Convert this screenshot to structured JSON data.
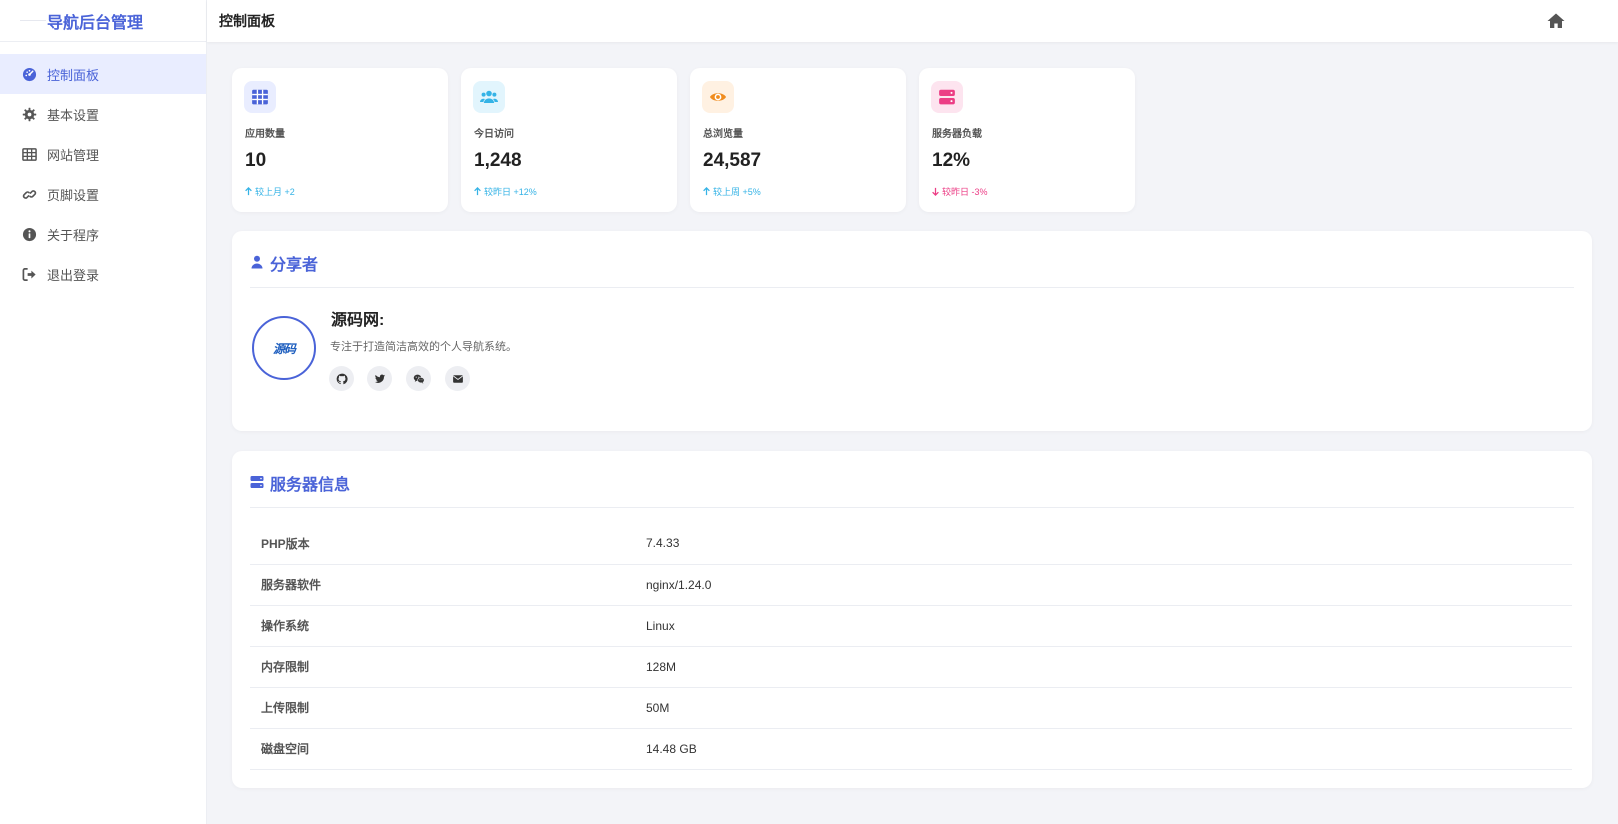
{
  "sidebar": {
    "brand": "导航后台管理",
    "items": [
      {
        "label": "控制面板",
        "icon": "dashboard-icon",
        "active": true
      },
      {
        "label": "基本设置",
        "icon": "gear-icon"
      },
      {
        "label": "网站管理",
        "icon": "table-icon"
      },
      {
        "label": "页脚设置",
        "icon": "link-icon"
      },
      {
        "label": "关于程序",
        "icon": "info-icon"
      },
      {
        "label": "退出登录",
        "icon": "logout-icon"
      }
    ]
  },
  "header": {
    "title": "控制面板",
    "home_icon": "home-icon"
  },
  "stats": [
    {
      "label": "应用数量",
      "value": "10",
      "trend": "较上月 +2",
      "direction": "up",
      "icon": "grid-icon",
      "color": "#4a63d8",
      "bg": "#e9edff"
    },
    {
      "label": "今日访问",
      "value": "1,248",
      "trend": "较昨日 +12%",
      "direction": "up",
      "icon": "users-icon",
      "color": "#35b3e6",
      "bg": "#e2f5fd"
    },
    {
      "label": "总浏览量",
      "value": "24,587",
      "trend": "较上周 +5%",
      "direction": "up",
      "icon": "eye-icon",
      "color": "#f08c1e",
      "bg": "#fff1e2"
    },
    {
      "label": "服务器负载",
      "value": "12%",
      "trend": "较昨日 -3%",
      "direction": "down",
      "icon": "server-icon",
      "color": "#ec3d85",
      "bg": "#fde4ef"
    }
  ],
  "colors": {
    "up": "#35b3e6",
    "down": "#ec3d85",
    "accent": "#4a63d8"
  },
  "sharer": {
    "title": "分享者",
    "avatar_text": "源码",
    "name": "源码网:",
    "description": "专注于打造简洁高效的个人导航系统。",
    "socials": [
      "github-icon",
      "twitter-icon",
      "wechat-icon",
      "envelope-icon"
    ]
  },
  "server": {
    "title": "服务器信息",
    "rows": [
      {
        "key": "PHP版本",
        "value": "7.4.33"
      },
      {
        "key": "服务器软件",
        "value": "nginx/1.24.0"
      },
      {
        "key": "操作系统",
        "value": "Linux"
      },
      {
        "key": "内存限制",
        "value": "128M"
      },
      {
        "key": "上传限制",
        "value": "50M"
      },
      {
        "key": "磁盘空间",
        "value": "14.48 GB"
      }
    ]
  }
}
